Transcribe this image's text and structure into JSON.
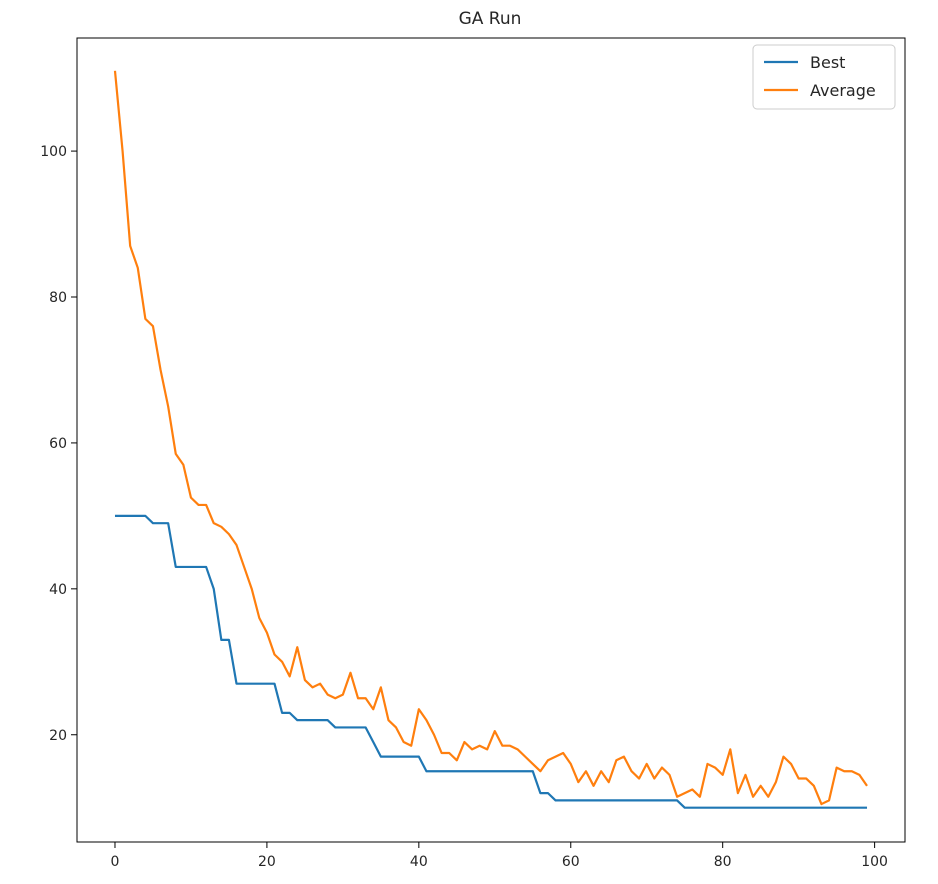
{
  "chart_data": {
    "type": "line",
    "title": "GA Run",
    "xlabel": "",
    "ylabel": "",
    "xlim": [
      -5,
      104
    ],
    "ylim": [
      5.3,
      115.5
    ],
    "xticks": [
      0,
      20,
      40,
      60,
      80,
      100
    ],
    "yticks": [
      20,
      40,
      60,
      80,
      100
    ],
    "grid": false,
    "legend_position": "top-right",
    "x": [
      0,
      1,
      2,
      3,
      4,
      5,
      6,
      7,
      8,
      9,
      10,
      11,
      12,
      13,
      14,
      15,
      16,
      17,
      18,
      19,
      20,
      21,
      22,
      23,
      24,
      25,
      26,
      27,
      28,
      29,
      30,
      31,
      32,
      33,
      34,
      35,
      36,
      37,
      38,
      39,
      40,
      41,
      42,
      43,
      44,
      45,
      46,
      47,
      48,
      49,
      50,
      51,
      52,
      53,
      54,
      55,
      56,
      57,
      58,
      59,
      60,
      61,
      62,
      63,
      64,
      65,
      66,
      67,
      68,
      69,
      70,
      71,
      72,
      73,
      74,
      75,
      76,
      77,
      78,
      79,
      80,
      81,
      82,
      83,
      84,
      85,
      86,
      87,
      88,
      89,
      90,
      91,
      92,
      93,
      94,
      95,
      96,
      97,
      98,
      99
    ],
    "series": [
      {
        "name": "Best",
        "color": "#1f77b4",
        "values": [
          50,
          50,
          50,
          50,
          50,
          49,
          49,
          49,
          43,
          43,
          43,
          43,
          43,
          40,
          33,
          33,
          27,
          27,
          27,
          27,
          27,
          27,
          23,
          23,
          22,
          22,
          22,
          22,
          22,
          21,
          21,
          21,
          21,
          21,
          19,
          17,
          17,
          17,
          17,
          17,
          17,
          15,
          15,
          15,
          15,
          15,
          15,
          15,
          15,
          15,
          15,
          15,
          15,
          15,
          15,
          15,
          12,
          12,
          11,
          11,
          11,
          11,
          11,
          11,
          11,
          11,
          11,
          11,
          11,
          11,
          11,
          11,
          11,
          11,
          11,
          10,
          10,
          10,
          10,
          10,
          10,
          10,
          10,
          10,
          10,
          10,
          10,
          10,
          10,
          10,
          10,
          10,
          10,
          10,
          10,
          10,
          10,
          10,
          10,
          10
        ]
      },
      {
        "name": "Average",
        "color": "#ff7f0e",
        "values": [
          111,
          100,
          87,
          84,
          77,
          76,
          70,
          65,
          58.5,
          57,
          52.5,
          51.5,
          51.5,
          49,
          48.5,
          47.5,
          46,
          43,
          40,
          36,
          34,
          31,
          30,
          28,
          32,
          27.5,
          26.5,
          27,
          25.5,
          25,
          25.5,
          28.5,
          25,
          25,
          23.5,
          26.5,
          22,
          21,
          19,
          18.5,
          23.5,
          22,
          20,
          17.5,
          17.5,
          16.5,
          19,
          18,
          18.5,
          18,
          20.5,
          18.5,
          18.5,
          18,
          17,
          16,
          15,
          16.5,
          17,
          17.5,
          16,
          13.5,
          15,
          13,
          15,
          13.5,
          16.5,
          17,
          15,
          14,
          16,
          14,
          15.5,
          14.5,
          11.5,
          12,
          12.5,
          11.5,
          16,
          15.5,
          14.5,
          18,
          12,
          14.5,
          11.5,
          13,
          11.5,
          13.5,
          17,
          16,
          14,
          14,
          13,
          10.5,
          11,
          15.5,
          15,
          15,
          14.5,
          13
        ]
      }
    ]
  }
}
